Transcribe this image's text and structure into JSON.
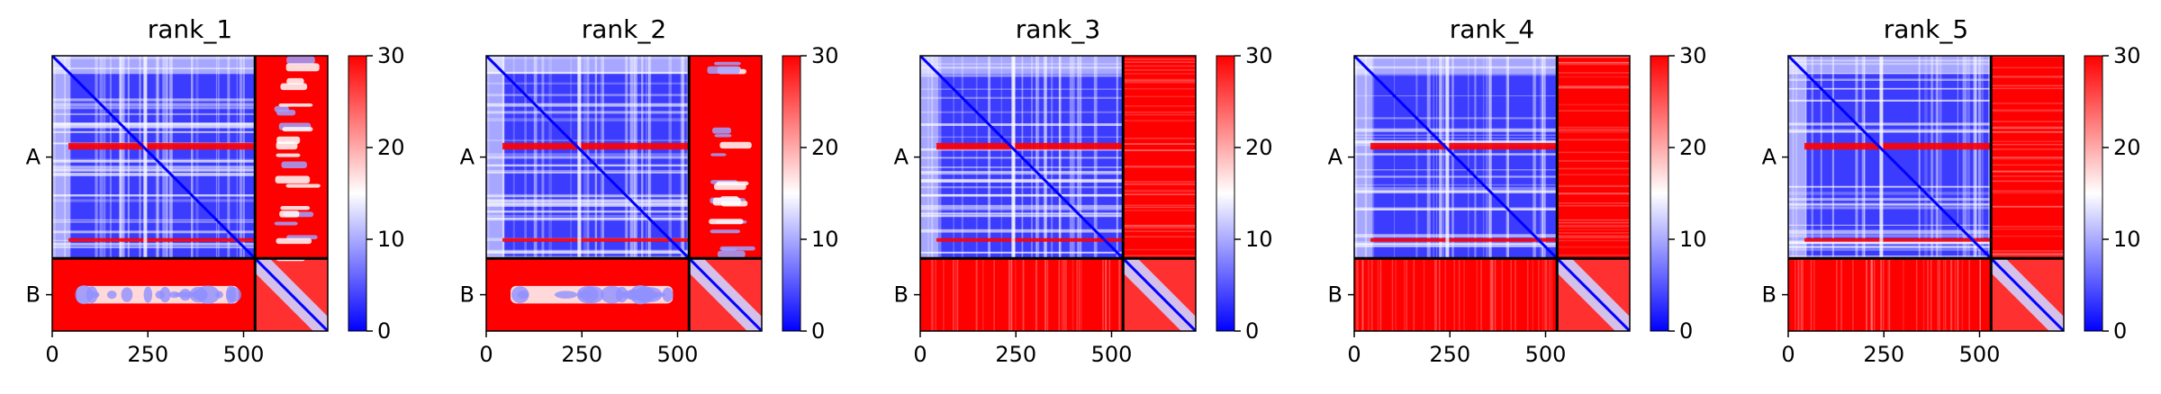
{
  "chart_data": [
    {
      "type": "heatmap",
      "title": "rank_1",
      "chain_labels": [
        "A",
        "B"
      ],
      "chain_lengths": [
        530,
        190
      ],
      "x_ticks": [
        0,
        250,
        500
      ],
      "xlim": [
        0,
        720
      ],
      "colorbar": {
        "min": 0,
        "max": 30,
        "ticks": [
          0,
          10,
          20,
          30
        ]
      },
      "colormap": "bwr",
      "interchain_pae_level": "mixed"
    },
    {
      "type": "heatmap",
      "title": "rank_2",
      "chain_labels": [
        "A",
        "B"
      ],
      "chain_lengths": [
        530,
        190
      ],
      "x_ticks": [
        0,
        250,
        500
      ],
      "xlim": [
        0,
        720
      ],
      "colorbar": {
        "min": 0,
        "max": 30,
        "ticks": [
          0,
          10,
          20,
          30
        ]
      },
      "colormap": "bwr",
      "interchain_pae_level": "mixed"
    },
    {
      "type": "heatmap",
      "title": "rank_3",
      "chain_labels": [
        "A",
        "B"
      ],
      "chain_lengths": [
        530,
        190
      ],
      "x_ticks": [
        0,
        250,
        500
      ],
      "xlim": [
        0,
        720
      ],
      "colorbar": {
        "min": 0,
        "max": 30,
        "ticks": [
          0,
          10,
          20,
          30
        ]
      },
      "colormap": "bwr",
      "interchain_pae_level": "high"
    },
    {
      "type": "heatmap",
      "title": "rank_4",
      "chain_labels": [
        "A",
        "B"
      ],
      "chain_lengths": [
        530,
        190
      ],
      "x_ticks": [
        0,
        250,
        500
      ],
      "xlim": [
        0,
        720
      ],
      "colorbar": {
        "min": 0,
        "max": 30,
        "ticks": [
          0,
          10,
          20,
          30
        ]
      },
      "colormap": "bwr",
      "interchain_pae_level": "high"
    },
    {
      "type": "heatmap",
      "title": "rank_5",
      "chain_labels": [
        "A",
        "B"
      ],
      "chain_lengths": [
        530,
        190
      ],
      "x_ticks": [
        0,
        250,
        500
      ],
      "xlim": [
        0,
        720
      ],
      "colorbar": {
        "min": 0,
        "max": 30,
        "ticks": [
          0,
          10,
          20,
          30
        ]
      },
      "colormap": "bwr",
      "interchain_pae_level": "high"
    }
  ],
  "colors": {
    "low": "#0000ff",
    "mid": "#ffffff",
    "high": "#ff0000",
    "border": "#000000"
  }
}
